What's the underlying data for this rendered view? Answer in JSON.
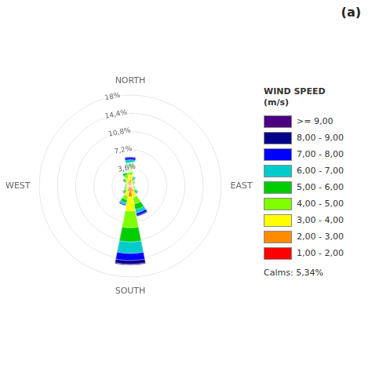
{
  "chart_data": {
    "type": "wind_rose",
    "title": "(a)",
    "categories": [
      "NORTH",
      null,
      null,
      null,
      "EAST",
      null,
      null,
      null,
      "SOUTH",
      null,
      null,
      null,
      "WEST",
      null,
      null,
      null
    ],
    "series": [
      {
        "name": "1,00 - 2,00",
        "color": "#FF0000",
        "values": [
          0.5,
          0.25,
          0.15,
          0.08,
          0.1,
          0.14,
          0.22,
          0.45,
          0.75,
          0.42,
          0.25,
          0.16,
          0.16,
          0.16,
          0.24,
          0.35
        ]
      },
      {
        "name": "2,00 - 3,00",
        "color": "#FF8C00",
        "values": [
          0.7,
          0.35,
          0.22,
          0.1,
          0.14,
          0.18,
          0.32,
          0.72,
          1.4,
          0.68,
          0.35,
          0.24,
          0.2,
          0.2,
          0.34,
          0.52
        ]
      },
      {
        "name": "3,00 - 4,00",
        "color": "#FFFF00",
        "values": [
          1.0,
          0.45,
          0.3,
          0.14,
          0.18,
          0.22,
          0.42,
          1.1,
          2.8,
          0.9,
          0.44,
          0.3,
          0.24,
          0.24,
          0.44,
          0.78
        ]
      },
      {
        "name": "4,00 - 5,00",
        "color": "#7FFF00",
        "values": [
          1.3,
          0.35,
          0.22,
          0.1,
          0.14,
          0.18,
          0.38,
          1.4,
          3.3,
          0.8,
          0.35,
          0.24,
          0.2,
          0.2,
          0.34,
          0.68
        ]
      },
      {
        "name": "5,00 - 6,00",
        "color": "#00CC00",
        "values": [
          1.0,
          0.25,
          0.15,
          0.07,
          0.08,
          0.12,
          0.28,
          1.1,
          2.8,
          0.62,
          0.25,
          0.16,
          0.12,
          0.12,
          0.24,
          0.5
        ]
      },
      {
        "name": "6,00 - 7,00",
        "color": "#00CCCC",
        "values": [
          0.7,
          0.15,
          0.08,
          0.04,
          0.04,
          0.06,
          0.16,
          0.72,
          2.3,
          0.35,
          0.12,
          0.08,
          0.06,
          0.06,
          0.12,
          0.28
        ]
      },
      {
        "name": "7,00 - 8,00",
        "color": "#0000FF",
        "values": [
          0.4,
          0.08,
          0.04,
          0.015,
          0.015,
          0.02,
          0.08,
          0.45,
          1.4,
          0.18,
          0.065,
          0.04,
          0.025,
          0.025,
          0.065,
          0.14
        ]
      },
      {
        "name": "8,00 - 9,00",
        "color": "#00008B",
        "values": [
          0.15,
          0.03,
          0.01,
          0.005,
          0.005,
          0.007,
          0.03,
          0.18,
          0.72,
          0.07,
          0.025,
          0.015,
          0.008,
          0.008,
          0.025,
          0.05
        ]
      },
      {
        "name": ">= 9,00",
        "color": "#4B0082",
        "values": [
          0.04,
          0.01,
          0.005,
          0.0,
          0.0,
          0.0,
          0.008,
          0.04,
          0.18,
          0.015,
          0.008,
          0.0,
          0.0,
          0.0,
          0.008,
          0.015
        ]
      }
    ],
    "ylim": [
      0,
      18.0
    ],
    "yticks": [
      {
        "value": 3.6,
        "label": "3,6%"
      },
      {
        "value": 7.2,
        "label": "7,2%"
      },
      {
        "value": 10.8,
        "label": "10,8%"
      },
      {
        "value": 14.4,
        "label": "14,4%"
      },
      {
        "value": 18.0,
        "label": "18%"
      }
    ],
    "grid": true,
    "stacked": true,
    "legend": "right",
    "legend_title": "WIND SPEED\n(m/s)",
    "annotations": [
      "Calms:  5,34%"
    ]
  }
}
